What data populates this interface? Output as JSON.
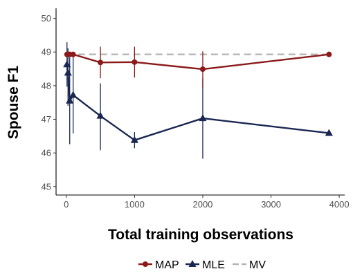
{
  "chart_data": {
    "type": "line",
    "xlabel": "Total training observations",
    "ylabel": "Spouse F1",
    "xlim": [
      -150,
      4080
    ],
    "ylim": [
      44.75,
      50.3
    ],
    "x_ticks": [
      0,
      1000,
      2000,
      3000,
      4000
    ],
    "x_tick_labels": [
      "0",
      "1000",
      "2000",
      "3000",
      "4000"
    ],
    "y_ticks": [
      45,
      46,
      47,
      48,
      49,
      50
    ],
    "y_tick_labels": [
      "45",
      "46",
      "47",
      "48",
      "49",
      "50"
    ],
    "grid": false,
    "legend_position": "bottom",
    "series": [
      {
        "name": "MAP",
        "color": "#8b1a1a",
        "marker": "circle",
        "line_style": "solid",
        "x": [
          10,
          25,
          50,
          100,
          500,
          1000,
          2000,
          3850
        ],
        "y": [
          48.93,
          48.93,
          48.93,
          48.93,
          48.69,
          48.7,
          48.49,
          48.93
        ],
        "err_low": [
          48.93,
          48.93,
          48.93,
          48.93,
          48.22,
          48.24,
          47.95,
          48.93
        ],
        "err_high": [
          48.93,
          48.93,
          48.93,
          48.93,
          49.16,
          49.16,
          49.02,
          48.93
        ]
      },
      {
        "name": "MLE",
        "color": "#1a2752",
        "marker": "triangle",
        "line_style": "solid",
        "x": [
          10,
          25,
          50,
          100,
          500,
          1000,
          2000,
          3850
        ],
        "y": [
          48.63,
          48.38,
          47.55,
          47.72,
          47.1,
          46.38,
          47.03,
          46.59
        ],
        "err_low": [
          47.97,
          47.4,
          46.26,
          46.58,
          46.08,
          46.14,
          45.83,
          46.59
        ],
        "err_high": [
          49.29,
          49.11,
          48.84,
          48.86,
          48.07,
          46.62,
          48.22,
          46.59
        ]
      },
      {
        "name": "MV",
        "color": "#b3b3b3",
        "marker": "none",
        "line_style": "dashed",
        "x": [
          10,
          3850
        ],
        "y": [
          48.93,
          48.93
        ]
      }
    ]
  }
}
